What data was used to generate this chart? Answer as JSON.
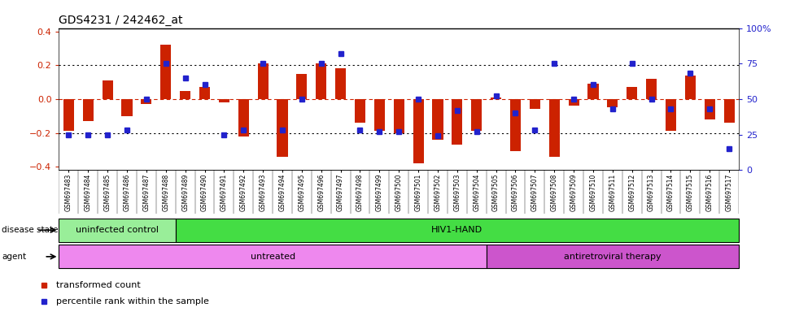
{
  "title": "GDS4231 / 242462_at",
  "samples": [
    "GSM697483",
    "GSM697484",
    "GSM697485",
    "GSM697486",
    "GSM697487",
    "GSM697488",
    "GSM697489",
    "GSM697490",
    "GSM697491",
    "GSM697492",
    "GSM697493",
    "GSM697494",
    "GSM697495",
    "GSM697496",
    "GSM697497",
    "GSM697498",
    "GSM697499",
    "GSM697500",
    "GSM697501",
    "GSM697502",
    "GSM697503",
    "GSM697504",
    "GSM697505",
    "GSM697506",
    "GSM697507",
    "GSM697508",
    "GSM697509",
    "GSM697510",
    "GSM697511",
    "GSM697512",
    "GSM697513",
    "GSM697514",
    "GSM697515",
    "GSM697516",
    "GSM697517"
  ],
  "red_bars": [
    -0.19,
    -0.13,
    0.11,
    -0.1,
    -0.03,
    0.32,
    0.05,
    0.07,
    -0.02,
    -0.22,
    0.21,
    -0.34,
    0.15,
    0.21,
    0.18,
    -0.14,
    -0.19,
    -0.2,
    -0.38,
    -0.24,
    -0.27,
    -0.19,
    0.01,
    -0.31,
    -0.06,
    -0.34,
    -0.04,
    0.09,
    -0.05,
    0.07,
    0.12,
    -0.19,
    0.14,
    -0.12,
    -0.14
  ],
  "blue_pct": [
    25,
    25,
    25,
    28,
    50,
    75,
    65,
    60,
    25,
    28,
    75,
    28,
    50,
    75,
    82,
    28,
    27,
    27,
    50,
    24,
    42,
    27,
    52,
    40,
    28,
    75,
    50,
    60,
    43,
    75,
    50,
    43,
    68,
    43,
    15
  ],
  "ylim": [
    -0.42,
    0.42
  ],
  "y2lim": [
    0,
    100
  ],
  "y2ticks": [
    0,
    25,
    50,
    75,
    100
  ],
  "y2ticklabels": [
    "0",
    "25",
    "50",
    "75",
    "100%"
  ],
  "yticks": [
    -0.4,
    -0.2,
    0.0,
    0.2,
    0.4
  ],
  "hlines_dotted": [
    -0.2,
    0.2
  ],
  "hline_dashed_red": 0.0,
  "bar_color": "#CC2200",
  "dot_color": "#2222CC",
  "bar_width": 0.55,
  "disease_state_groups": [
    {
      "label": "uninfected control",
      "start": 0,
      "end": 6,
      "color": "#99EE99"
    },
    {
      "label": "HIV1-HAND",
      "start": 6,
      "end": 35,
      "color": "#44DD44"
    }
  ],
  "agent_groups": [
    {
      "label": "untreated",
      "start": 0,
      "end": 22,
      "color": "#EE88EE"
    },
    {
      "label": "antiretroviral therapy",
      "start": 22,
      "end": 35,
      "color": "#CC55CC"
    }
  ],
  "legend_items": [
    {
      "label": "transformed count",
      "color": "#CC2200"
    },
    {
      "label": "percentile rank within the sample",
      "color": "#2222CC"
    }
  ]
}
